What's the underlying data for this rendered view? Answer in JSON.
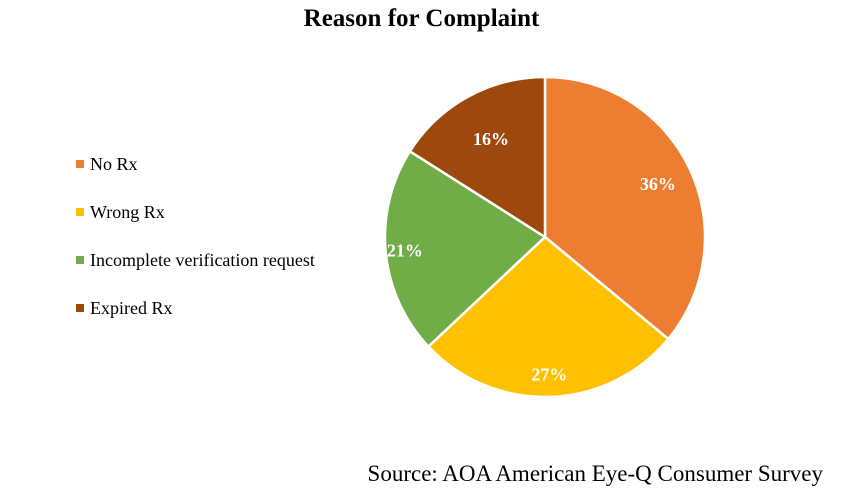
{
  "chart_data": {
    "type": "pie",
    "title": "Reason for Complaint",
    "categories": [
      "No Rx",
      "Wrong Rx",
      "Incomplete verification request",
      "Expired Rx"
    ],
    "values": [
      36,
      27,
      21,
      16
    ],
    "value_labels": [
      "36%",
      "27%",
      "21%",
      "16%"
    ],
    "colors": [
      "#ED7D31",
      "#FFC000",
      "#70AD47",
      "#9E480E"
    ],
    "legend_position": "left",
    "start_angle": "12 o'clock",
    "direction": "clockwise"
  },
  "source": "Source: AOA American Eye-Q Consumer Survey"
}
